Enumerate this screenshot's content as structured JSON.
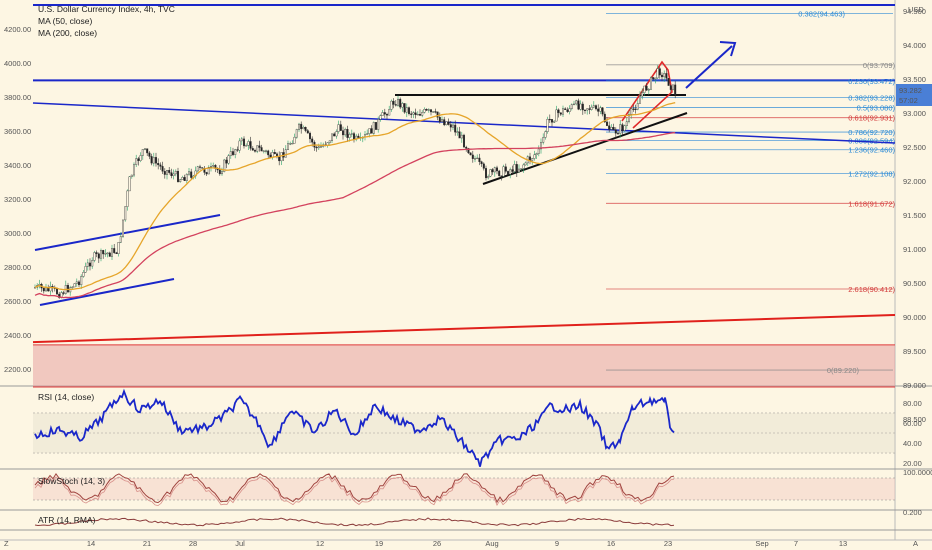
{
  "header": {
    "title": "U.S. Dollar Currency Index, 4h, TVC",
    "ma50": "MA (50, close)",
    "ma200": "MA (200, close)"
  },
  "price_scale": {
    "unit": "USD",
    "last_price": "93.282",
    "countdown": "57:02"
  },
  "indicators": {
    "rsi": "RSI (14, close)",
    "stoch": "SlowStoch (14, 3)",
    "atr": "ATR (14, RMA)"
  },
  "bottom_bar": {
    "left_icon": "Z",
    "right_icon": "A"
  },
  "colors": {
    "background": "#fdf6e3",
    "trendline": "#1a27c9",
    "support_zone": "#e8a3a3",
    "support_line": "#e0201b",
    "ma50": "#e6a52a",
    "ma200": "#d3425e",
    "rsi": "#1a27c9",
    "stoch": "#a0443f"
  },
  "chart_data": [
    {
      "type": "line",
      "ylim": [
        88.5,
        95.0
      ],
      "right_ticks": [
        "94.500",
        "94.000",
        "93.500",
        "93.000",
        "92.500",
        "92.000",
        "91.500",
        "91.000",
        "90.500",
        "90.000",
        "89.500",
        "89.000",
        "88.500"
      ],
      "left_ticks": [
        "4200.00",
        "4000.00",
        "3800.00",
        "3600.00",
        "3400.00",
        "3200.00",
        "3000.00",
        "2800.00",
        "2600.00",
        "2400.00",
        "2200.00"
      ],
      "x_ticks": [
        "14",
        "21",
        "28",
        "Jul",
        "12",
        "19",
        "26",
        "Aug",
        "9",
        "16",
        "23",
        "Sep",
        "7",
        "13"
      ],
      "fib_levels": [
        {
          "label": "0.382(94.463)",
          "value": 94.463
        },
        {
          "label": "0(93.709)",
          "value": 93.709
        },
        {
          "label": "0.236(93.472)",
          "value": 93.472
        },
        {
          "label": "0.382(93.228)",
          "value": 93.228
        },
        {
          "label": "0.5(93.080)",
          "value": 93.08
        },
        {
          "label": "0.618(92.931)",
          "value": 92.931
        },
        {
          "label": "0.786(92.720)",
          "value": 92.72
        },
        {
          "label": "0.886(92.594)",
          "value": 92.594
        },
        {
          "label": "1.236(92.460)",
          "value": 92.46
        },
        {
          "label": "1.272(92.108)",
          "value": 92.108
        },
        {
          "label": "1.618(91.672)",
          "value": 91.672
        },
        {
          "label": "2.618(90.412)",
          "value": 90.412
        },
        {
          "label": "0(89.220)",
          "value": 89.22
        }
      ]
    },
    {
      "type": "line",
      "title": "RSI (14, close)",
      "ylim": [
        20,
        85
      ],
      "ticks": [
        "80.00",
        "60.00",
        "40.00",
        "20.00"
      ]
    },
    {
      "type": "line",
      "title": "SlowStoch (14, 3)",
      "ticks": [
        "100.0000"
      ]
    },
    {
      "type": "line",
      "title": "ATR (14, RMA)",
      "ticks": [
        "0.200"
      ]
    }
  ]
}
